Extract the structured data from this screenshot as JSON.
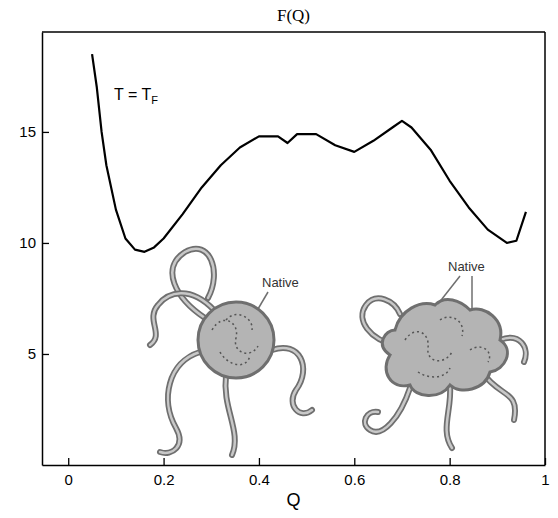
{
  "chart_data": {
    "type": "line",
    "title": "F(Q)",
    "x_label": "Q",
    "x": [
      0.05,
      0.06,
      0.07,
      0.08,
      0.1,
      0.12,
      0.14,
      0.16,
      0.18,
      0.2,
      0.24,
      0.28,
      0.32,
      0.36,
      0.4,
      0.44,
      0.46,
      0.48,
      0.52,
      0.56,
      0.6,
      0.64,
      0.68,
      0.7,
      0.72,
      0.76,
      0.8,
      0.84,
      0.88,
      0.92,
      0.94,
      0.96
    ],
    "values": [
      18.5,
      17.0,
      15.0,
      13.5,
      11.5,
      10.2,
      9.7,
      9.6,
      9.8,
      10.2,
      11.3,
      12.5,
      13.5,
      14.3,
      14.8,
      14.8,
      14.5,
      14.9,
      14.9,
      14.4,
      14.1,
      14.6,
      15.2,
      15.5,
      15.2,
      14.2,
      12.8,
      11.6,
      10.6,
      10.0,
      10.1,
      11.4
    ],
    "color": "#000000",
    "xlim": [
      -0.055,
      1.0
    ],
    "xticks": [
      0,
      0.2,
      0.4,
      0.6,
      0.8,
      1
    ],
    "ylim": [
      0,
      19.5
    ],
    "yticks": [
      5,
      10,
      15
    ],
    "grid": false,
    "annotations": [
      {
        "text": "T = T",
        "subscript": "F"
      },
      {
        "text": "Native"
      },
      {
        "text": "Native"
      }
    ]
  }
}
